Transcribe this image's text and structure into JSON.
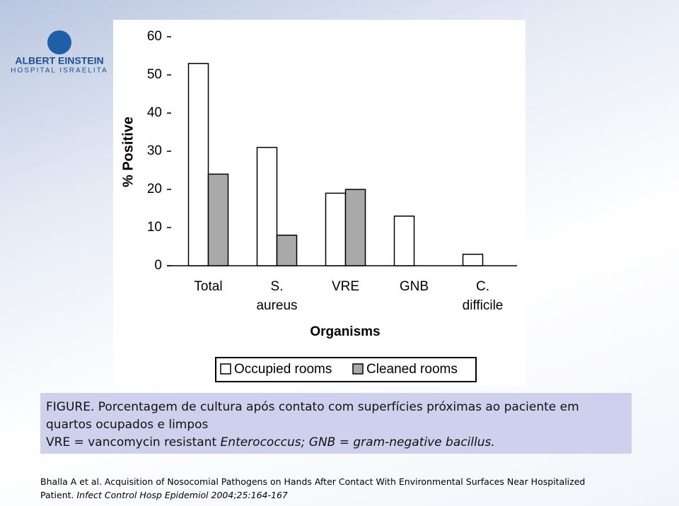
{
  "logo": {
    "name": "ALBERT EINSTEIN",
    "subtitle": "HOSPITAL ISRAELITA"
  },
  "chart_data": {
    "type": "bar",
    "y_label": "% Positive",
    "x_label": "Organisms",
    "categories": [
      [
        "Total"
      ],
      [
        "S.",
        "aureus"
      ],
      [
        "VRE"
      ],
      [
        "GNB"
      ],
      [
        "C.",
        "difficile"
      ]
    ],
    "series": [
      {
        "name": "Occupied rooms",
        "color": "#ffffff",
        "values": [
          53,
          31,
          19,
          13,
          3
        ]
      },
      {
        "name": "Cleaned rooms",
        "color": "#a9a9a9",
        "values": [
          24,
          8,
          20,
          0,
          0
        ]
      }
    ],
    "ylim": [
      0,
      60
    ],
    "yticks": [
      0,
      10,
      20,
      30,
      40,
      50,
      60
    ],
    "grid": false
  },
  "caption": {
    "lines": [
      [
        {
          "text": "FIGURE. Porcentagem de cultura após contato com superfícies próximas ao paciente em",
          "italic": false
        }
      ],
      [
        {
          "text": "quartos ocupados e limpos",
          "italic": false
        }
      ],
      [
        {
          "text": "VRE = vancomycin resistant ",
          "italic": false
        },
        {
          "text": "Enterococcus; GNB = gram-negative bacillus.",
          "italic": true
        }
      ]
    ]
  },
  "reference": {
    "lines": [
      [
        {
          "text": "Bhalla A et al. Acquisition of Nosocomial Pathogens on Hands After Contact With Environmental Surfaces Near Hospitalized",
          "italic": false
        }
      ],
      [
        {
          "text": "Patient. ",
          "italic": false
        },
        {
          "text": "Infect Control Hosp Epidemiol 2004;25:164-167",
          "italic": true
        }
      ]
    ]
  }
}
